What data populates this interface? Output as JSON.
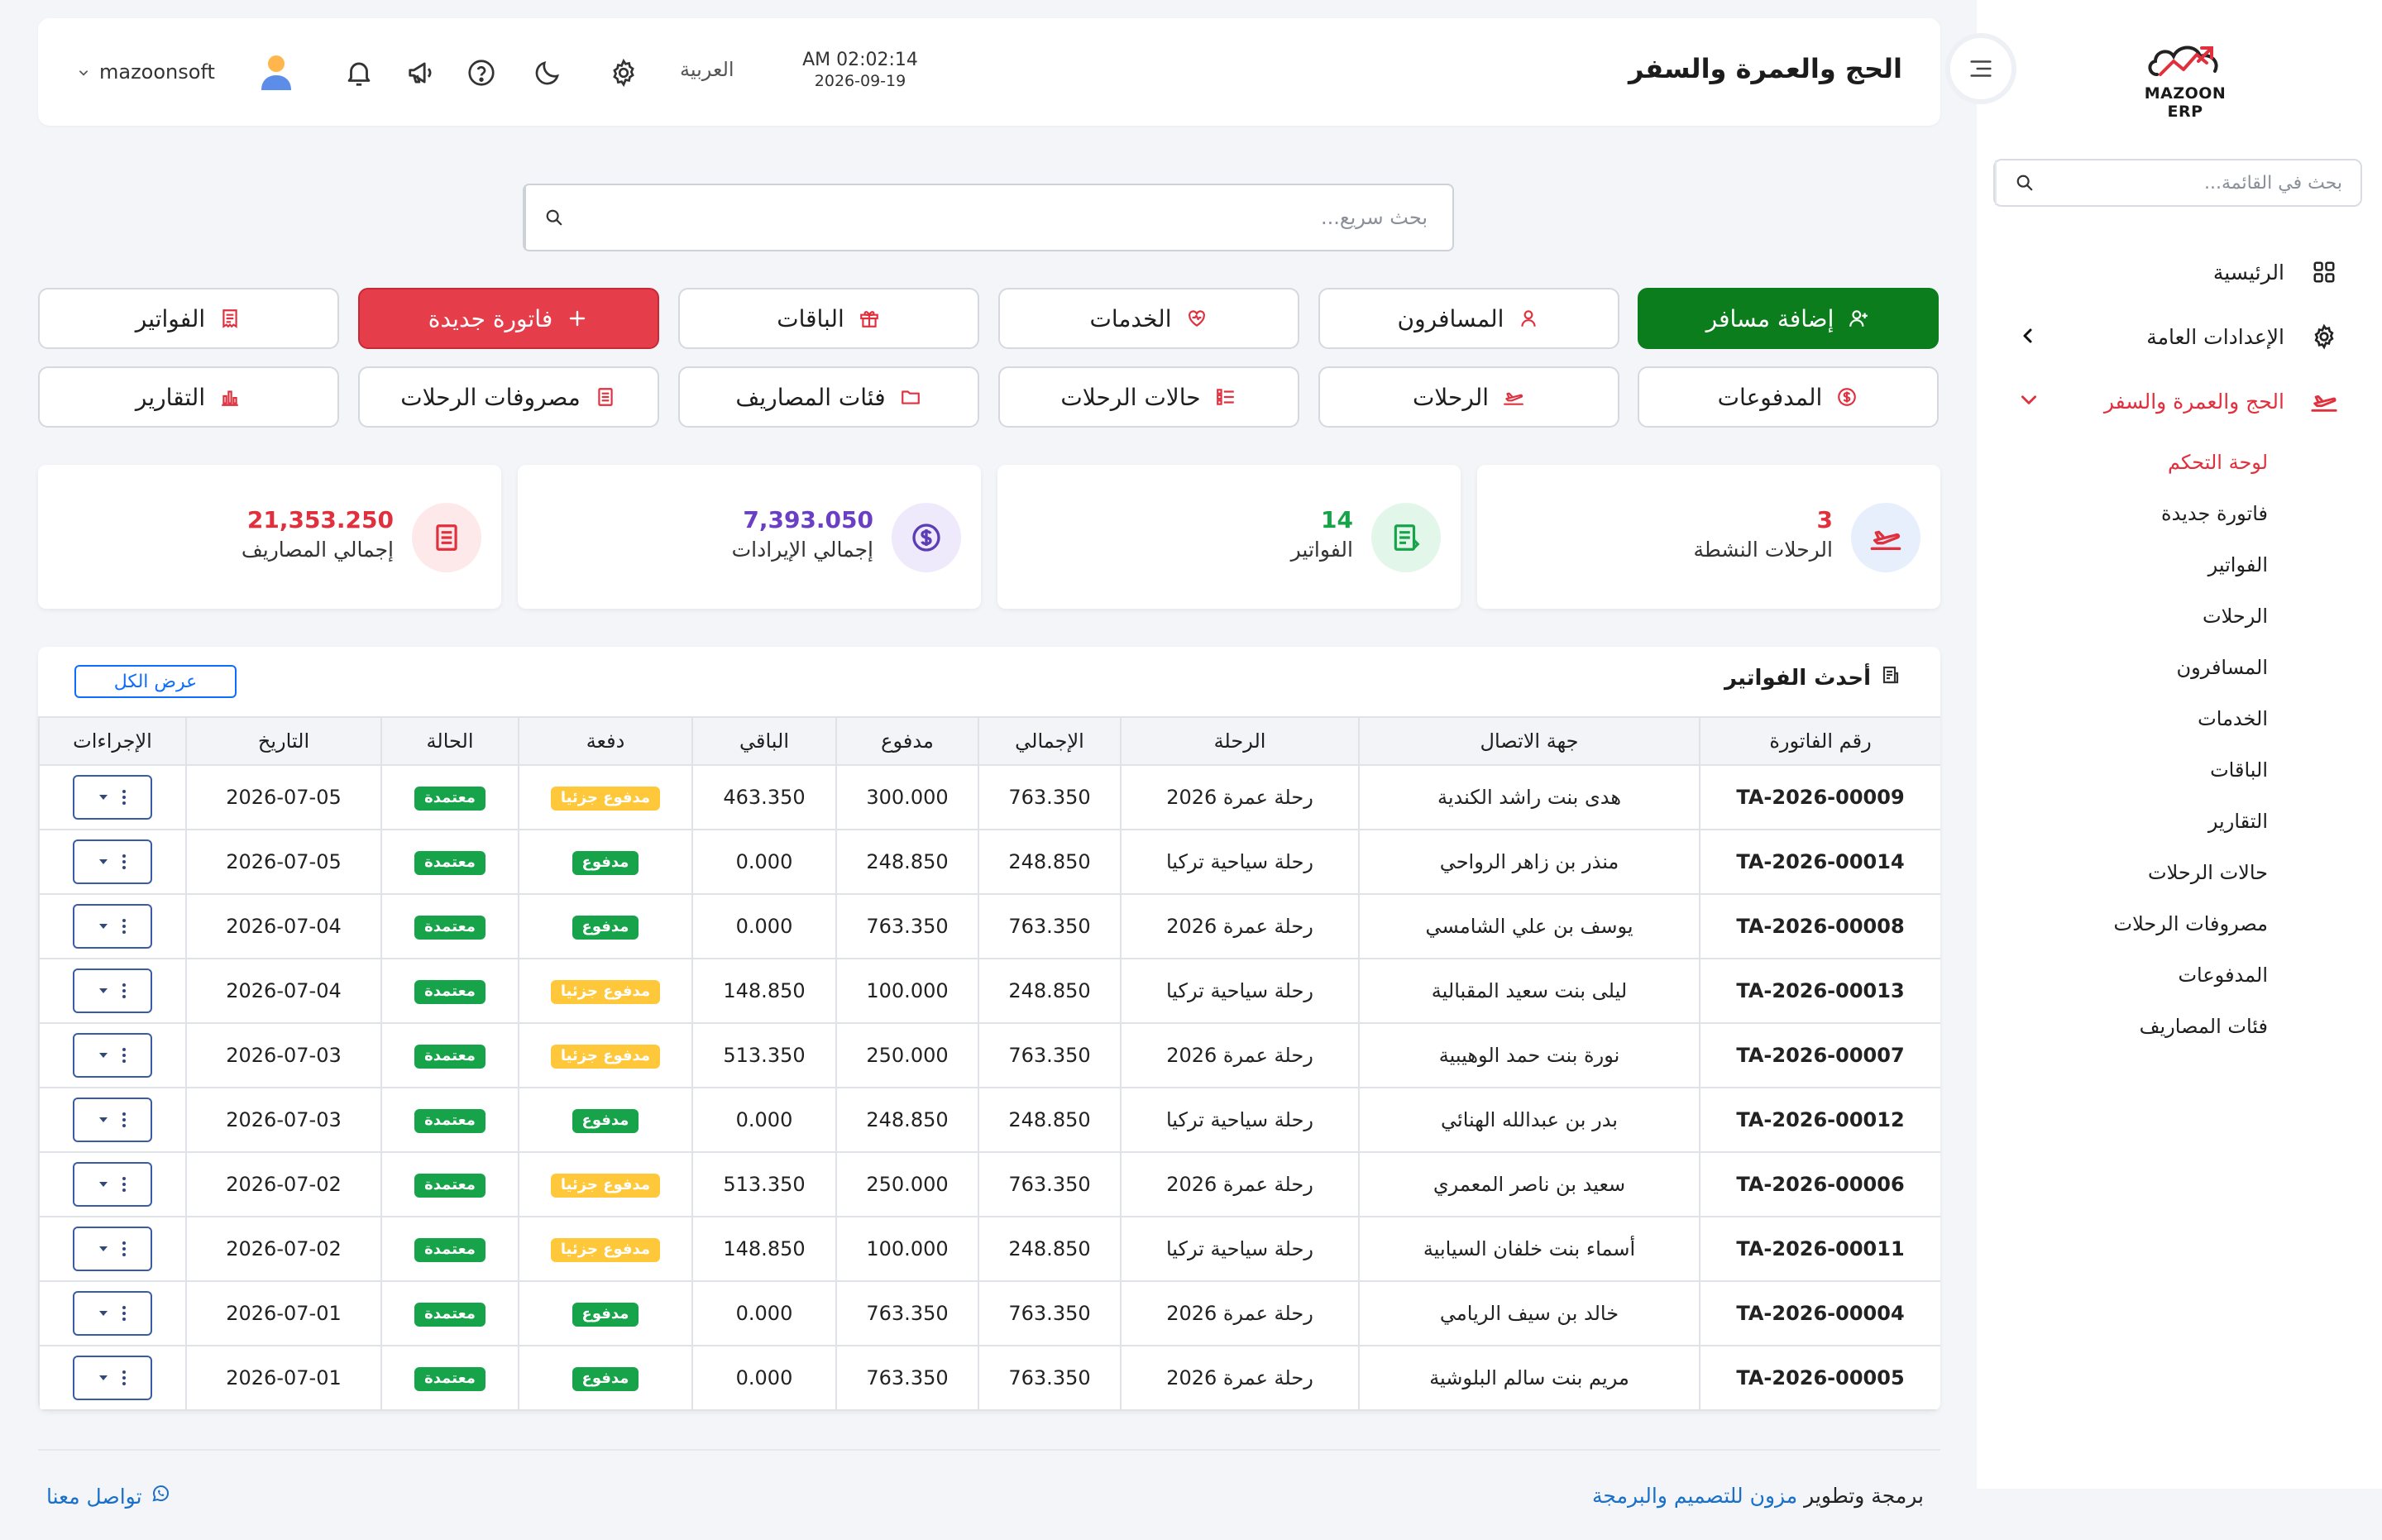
{
  "app": {
    "logo_text": "MAZOON ERP"
  },
  "sidebar": {
    "search_placeholder": "بحث في القائمة...",
    "items": [
      {
        "label": "الرئيسية",
        "icon": "grid-icon"
      },
      {
        "label": "الإعدادات العامة",
        "icon": "gear-icon"
      },
      {
        "label": "الحج والعمرة والسفر",
        "icon": "plane-icon"
      }
    ],
    "submenu": [
      "لوحة التحكم",
      "فاتورة جديدة",
      "الفواتير",
      "الرحلات",
      "المسافرون",
      "الخدمات",
      "الباقات",
      "التقارير",
      "حالات الرحلات",
      "مصروفات الرحلات",
      "المدفوعات",
      "فئات المصاريف"
    ]
  },
  "header": {
    "title": "الحج والعمرة والسفر",
    "time": "AM 02:02:14",
    "date": "2026-09-19",
    "language": "العربية",
    "username": "mazoonsoft"
  },
  "search": {
    "placeholder": "بحث سريع..."
  },
  "actions": {
    "add_traveler": "إضافة مسافر",
    "travelers": "المسافرون",
    "services": "الخدمات",
    "packages": "الباقات",
    "new_invoice": "فاتورة جديدة",
    "invoices": "الفواتير",
    "payments": "المدفوعات",
    "trips": "الرحلات",
    "trip_statuses": "حالات الرحلات",
    "expense_categories": "فئات المصاريف",
    "trip_expenses": "مصروفات الرحلات",
    "reports": "التقارير"
  },
  "stats": {
    "active_trips": {
      "value": "3",
      "label": "الرحلات النشطة"
    },
    "invoices": {
      "value": "14",
      "label": "الفواتير"
    },
    "revenue": {
      "value": "7,393.050",
      "label": "إجمالي الإيرادات"
    },
    "expenses": {
      "value": "21,353.250",
      "label": "إجمالي المصاريف"
    }
  },
  "invoices": {
    "title": "أحدث الفواتير",
    "view_all": "عرض الكل",
    "columns": [
      "رقم الفاتورة",
      "جهة الاتصال",
      "الرحلة",
      "الإجمالي",
      "مدفوع",
      "الباقي",
      "دفعة",
      "الحالة",
      "التاريخ",
      "الإجراءات"
    ],
    "rows": [
      {
        "no": "TA-2026-00009",
        "contact": "هدى بنت راشد الكندية",
        "trip": "رحلة عمرة 2026",
        "total": "763.350",
        "paid": "300.000",
        "remaining": "463.350",
        "payment": "مدفوع جزئيا",
        "status": "معتمدة",
        "date": "2026-07-05"
      },
      {
        "no": "TA-2026-00014",
        "contact": "منذر بن زاهر الرواحي",
        "trip": "رحلة سياحية تركيا",
        "total": "248.850",
        "paid": "248.850",
        "remaining": "0.000",
        "payment": "مدفوع",
        "status": "معتمدة",
        "date": "2026-07-05"
      },
      {
        "no": "TA-2026-00008",
        "contact": "يوسف بن علي الشامسي",
        "trip": "رحلة عمرة 2026",
        "total": "763.350",
        "paid": "763.350",
        "remaining": "0.000",
        "payment": "مدفوع",
        "status": "معتمدة",
        "date": "2026-07-04"
      },
      {
        "no": "TA-2026-00013",
        "contact": "ليلى بنت سعيد المقبالية",
        "trip": "رحلة سياحية تركيا",
        "total": "248.850",
        "paid": "100.000",
        "remaining": "148.850",
        "payment": "مدفوع جزئيا",
        "status": "معتمدة",
        "date": "2026-07-04"
      },
      {
        "no": "TA-2026-00007",
        "contact": "نورة بنت حمد الوهيبية",
        "trip": "رحلة عمرة 2026",
        "total": "763.350",
        "paid": "250.000",
        "remaining": "513.350",
        "payment": "مدفوع جزئيا",
        "status": "معتمدة",
        "date": "2026-07-03"
      },
      {
        "no": "TA-2026-00012",
        "contact": "بدر بن عبدالله الهنائي",
        "trip": "رحلة سياحية تركيا",
        "total": "248.850",
        "paid": "248.850",
        "remaining": "0.000",
        "payment": "مدفوع",
        "status": "معتمدة",
        "date": "2026-07-03"
      },
      {
        "no": "TA-2026-00006",
        "contact": "سعيد بن ناصر المعمري",
        "trip": "رحلة عمرة 2026",
        "total": "763.350",
        "paid": "250.000",
        "remaining": "513.350",
        "payment": "مدفوع جزئيا",
        "status": "معتمدة",
        "date": "2026-07-02"
      },
      {
        "no": "TA-2026-00011",
        "contact": "أسماء بنت خلفان السيابية",
        "trip": "رحلة سياحية تركيا",
        "total": "248.850",
        "paid": "100.000",
        "remaining": "148.850",
        "payment": "مدفوع جزئيا",
        "status": "معتمدة",
        "date": "2026-07-02"
      },
      {
        "no": "TA-2026-00004",
        "contact": "خالد بن سيف الريامي",
        "trip": "رحلة عمرة 2026",
        "total": "763.350",
        "paid": "763.350",
        "remaining": "0.000",
        "payment": "مدفوع",
        "status": "معتمدة",
        "date": "2026-07-01"
      },
      {
        "no": "TA-2026-00005",
        "contact": "مريم بنت سالم البلوشية",
        "trip": "رحلة عمرة 2026",
        "total": "763.350",
        "paid": "763.350",
        "remaining": "0.000",
        "payment": "مدفوع",
        "status": "معتمدة",
        "date": "2026-07-01"
      }
    ]
  },
  "footer": {
    "credit_prefix": "برمجة وتطوير",
    "credit_link": "مزون للتصميم والبرمجة",
    "contact": "تواصل معنا"
  },
  "colors": {
    "accent_red": "#e0303e",
    "green": "#0b7d1c",
    "link_blue": "#1a6fc7"
  }
}
